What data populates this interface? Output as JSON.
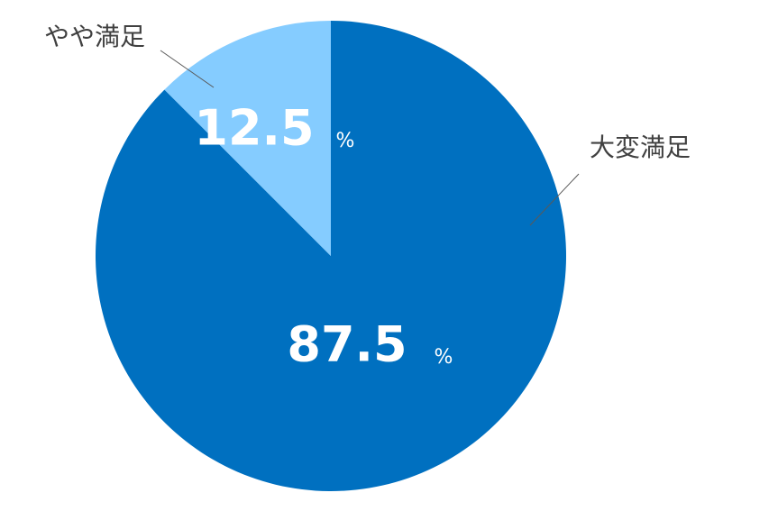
{
  "chart_data": {
    "type": "pie",
    "categories": [
      "大変満足",
      "やや満足"
    ],
    "values": [
      87.5,
      12.5
    ],
    "value_labels": [
      "87.5",
      "12.5"
    ],
    "value_unit": "%",
    "colors": [
      "#0070c0",
      "#85ccff"
    ],
    "start_angle": 0,
    "direction": "clockwise"
  }
}
